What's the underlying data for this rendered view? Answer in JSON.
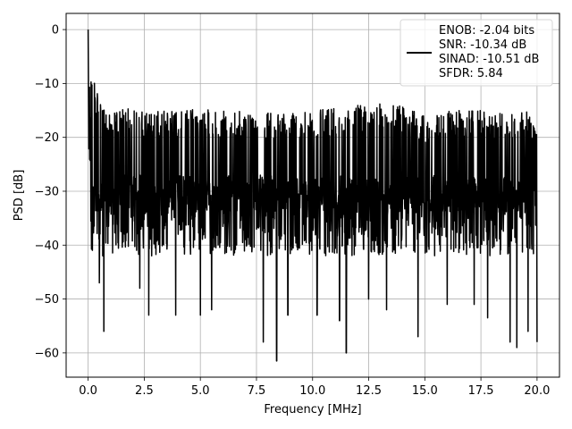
{
  "chart_data": {
    "type": "line",
    "title": "",
    "xlabel": "Frequency [MHz]",
    "ylabel": "PSD [dB]",
    "xlim": [
      -0.98,
      21.0
    ],
    "ylim": [
      -64.5,
      3.0
    ],
    "xticks": [
      0.0,
      2.5,
      5.0,
      7.5,
      10.0,
      12.5,
      15.0,
      17.5,
      20.0
    ],
    "xtick_labels": [
      "0.0",
      "2.5",
      "5.0",
      "7.5",
      "10.0",
      "12.5",
      "15.0",
      "17.5",
      "20.0"
    ],
    "yticks": [
      0,
      -10,
      -20,
      -30,
      -40,
      -50,
      -60
    ],
    "ytick_labels": [
      "0",
      "−10",
      "−20",
      "−30",
      "−40",
      "−50",
      "−60"
    ],
    "grid": true,
    "legend_position": "top-right",
    "legend_entries": [
      "ENOB: -2.04 bits",
      "SNR: -10.34 dB",
      "SINAD: -10.51 dB",
      "SFDR: 5.84"
    ],
    "series": [
      {
        "color": "#000000",
        "x_range": [
          0.0,
          20.0
        ],
        "baseline_db": -31,
        "spike_tops": [
          [
            0.0,
            0
          ],
          [
            0.05,
            -7
          ],
          [
            0.1,
            -10
          ],
          [
            0.2,
            -13
          ],
          [
            0.4,
            -16
          ],
          [
            0.6,
            -19
          ],
          [
            1.0,
            -21
          ],
          [
            1.5,
            -19.5
          ],
          [
            2.5,
            -20
          ],
          [
            3.5,
            -20
          ],
          [
            4.8,
            -19.5
          ],
          [
            6.0,
            -20
          ],
          [
            7.5,
            -20
          ],
          [
            8.5,
            -20.5
          ],
          [
            11.5,
            -19.5
          ],
          [
            13.3,
            -18
          ],
          [
            15.0,
            -21
          ],
          [
            16.0,
            -20
          ],
          [
            17.4,
            -20
          ],
          [
            18.5,
            -20.5
          ],
          [
            18.9,
            -20
          ],
          [
            19.5,
            -20
          ],
          [
            20.0,
            -23
          ]
        ],
        "deep_dips": [
          [
            0.5,
            -47
          ],
          [
            0.7,
            -56
          ],
          [
            2.3,
            -48
          ],
          [
            2.7,
            -53
          ],
          [
            3.9,
            -53
          ],
          [
            5.0,
            -53
          ],
          [
            5.5,
            -52
          ],
          [
            7.8,
            -58
          ],
          [
            8.4,
            -61.5
          ],
          [
            8.9,
            -53
          ],
          [
            10.2,
            -53
          ],
          [
            11.2,
            -54
          ],
          [
            11.5,
            -60
          ],
          [
            12.5,
            -50
          ],
          [
            13.3,
            -52
          ],
          [
            14.7,
            -57
          ],
          [
            16.0,
            -51
          ],
          [
            17.2,
            -51
          ],
          [
            17.8,
            -53.5
          ],
          [
            18.8,
            -58
          ],
          [
            19.1,
            -59
          ],
          [
            19.6,
            -56
          ],
          [
            20.0,
            -58
          ]
        ],
        "point_count": 2000
      }
    ]
  }
}
